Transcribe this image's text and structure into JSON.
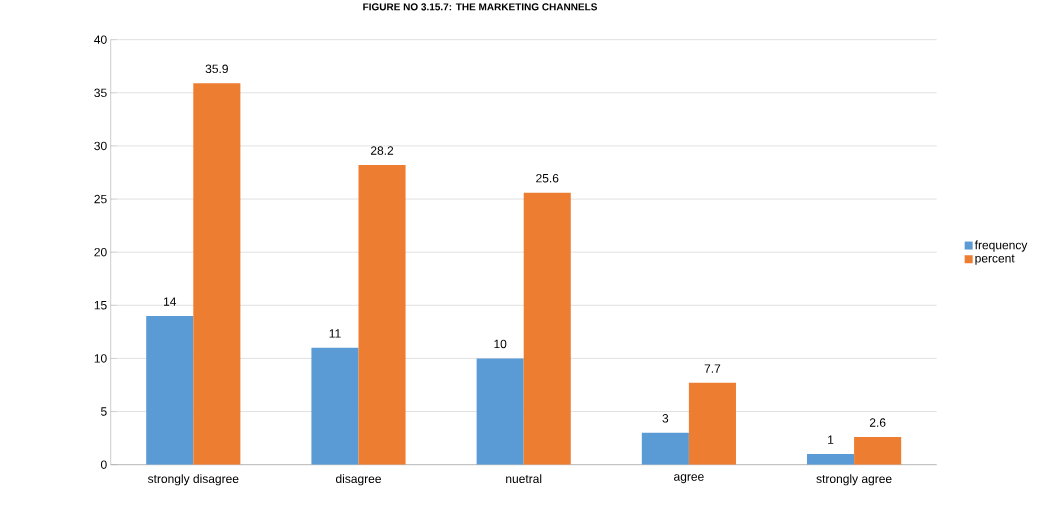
{
  "chart_data": {
    "type": "bar",
    "title": "FIGURE NO 3.15.7: THE MARKETING CHANNELS",
    "categories": [
      "strongly disagree",
      "disagree",
      "nuetral",
      "agree",
      "strongly agree"
    ],
    "series": [
      {
        "name": "frequency",
        "color": "#5b9bd5",
        "values": [
          14,
          11,
          10,
          3,
          1
        ]
      },
      {
        "name": "percent",
        "color": "#ed7d31",
        "values": [
          35.9,
          28.2,
          25.6,
          7.7,
          2.6
        ]
      }
    ],
    "ylim": [
      0,
      40
    ],
    "yticks": [
      0,
      5,
      10,
      15,
      20,
      25,
      30,
      35,
      40
    ],
    "grid": "y",
    "legend": "right",
    "data_labels": true
  }
}
